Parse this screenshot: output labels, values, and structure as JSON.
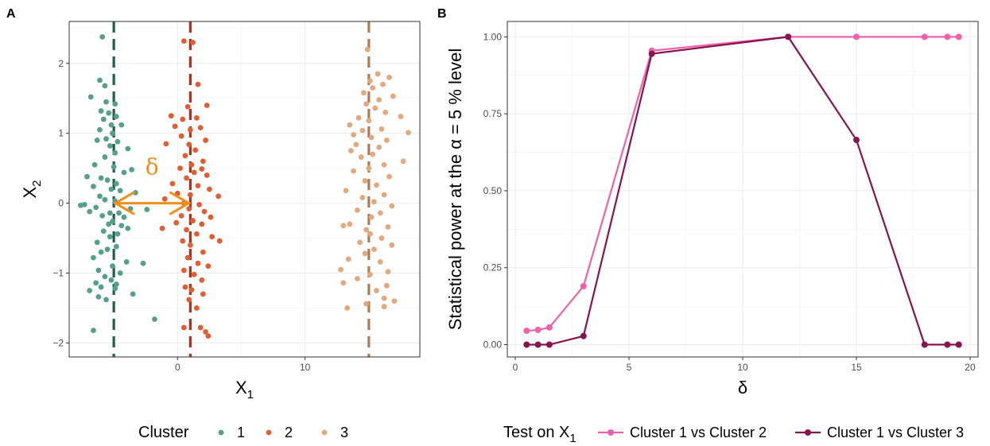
{
  "panels": {
    "a_label": "A",
    "b_label": "B"
  },
  "chart_data": [
    {
      "type": "scatter",
      "panel": "A",
      "xlabel_main": "X",
      "xlabel_sub": "1",
      "ylabel_main": "X",
      "ylabel_sub": "2",
      "xlim": [
        -8.5,
        19
      ],
      "ylim": [
        -2.2,
        2.6
      ],
      "xticks": [
        0,
        10
      ],
      "yticks": [
        -2,
        -1,
        0,
        1,
        2
      ],
      "cluster_centers": [
        -5,
        1,
        15
      ],
      "delta_annotation": {
        "text": "δ",
        "from": -5,
        "to": 1,
        "y": 0,
        "color": "#f28e1c"
      },
      "legend_title": "Cluster",
      "series": [
        {
          "name": "1",
          "color": "#55a08a",
          "line_color": "#1f5e4e",
          "points": [
            [
              -5.9,
              2.38
            ],
            [
              -6.1,
              1.76
            ],
            [
              -5.7,
              1.68
            ],
            [
              -6.8,
              1.52
            ],
            [
              -5.6,
              1.45
            ],
            [
              -4.9,
              1.42
            ],
            [
              -6.0,
              1.32
            ],
            [
              -5.4,
              1.29
            ],
            [
              -4.8,
              1.24
            ],
            [
              -5.8,
              1.2
            ],
            [
              -5.2,
              1.12
            ],
            [
              -4.4,
              1.12
            ],
            [
              -6.1,
              1.05
            ],
            [
              -5.1,
              1.0
            ],
            [
              -5.6,
              0.92
            ],
            [
              -6.3,
              0.9
            ],
            [
              -4.7,
              0.88
            ],
            [
              -5.3,
              0.82
            ],
            [
              -3.9,
              0.78
            ],
            [
              -4.9,
              0.72
            ],
            [
              -5.7,
              0.66
            ],
            [
              -6.5,
              0.55
            ],
            [
              -5.0,
              0.52
            ],
            [
              -3.6,
              0.48
            ],
            [
              -4.2,
              0.44
            ],
            [
              -7.1,
              0.38
            ],
            [
              -6.0,
              0.36
            ],
            [
              -5.5,
              0.33
            ],
            [
              -4.8,
              0.28
            ],
            [
              -6.6,
              0.24
            ],
            [
              -5.2,
              0.2
            ],
            [
              -4.5,
              0.18
            ],
            [
              -3.3,
              0.15
            ],
            [
              -6.1,
              0.1
            ],
            [
              -5.7,
              0.05
            ],
            [
              -4.9,
              0.03
            ],
            [
              -7.3,
              -0.02
            ],
            [
              -7.6,
              -0.03
            ],
            [
              -6.4,
              -0.06
            ],
            [
              -3.7,
              -0.08
            ],
            [
              -2.4,
              -0.09
            ],
            [
              -5.3,
              -0.14
            ],
            [
              -4.6,
              -0.14
            ],
            [
              -6.9,
              -0.12
            ],
            [
              -5.9,
              -0.18
            ],
            [
              -4.2,
              -0.2
            ],
            [
              -5.1,
              -0.26
            ],
            [
              -5.4,
              -0.3
            ],
            [
              -4.4,
              -0.32
            ],
            [
              -3.9,
              -0.36
            ],
            [
              -5.8,
              -0.4
            ],
            [
              -4.7,
              -0.44
            ],
            [
              -5.3,
              -0.48
            ],
            [
              -6.3,
              -0.56
            ],
            [
              -4.8,
              -0.62
            ],
            [
              -5.5,
              -0.66
            ],
            [
              -6.0,
              -0.7
            ],
            [
              -6.6,
              -0.78
            ],
            [
              -4.0,
              -0.84
            ],
            [
              -2.7,
              -0.86
            ],
            [
              -5.1,
              -0.9
            ],
            [
              -6.2,
              -0.96
            ],
            [
              -4.5,
              -1.0
            ],
            [
              -5.7,
              -1.05
            ],
            [
              -5.2,
              -1.1
            ],
            [
              -6.4,
              -1.14
            ],
            [
              -4.8,
              -1.16
            ],
            [
              -6.0,
              -1.2
            ],
            [
              -6.9,
              -1.25
            ],
            [
              -4.9,
              -1.22
            ],
            [
              -3.5,
              -1.3
            ],
            [
              -6.2,
              -1.34
            ],
            [
              -5.6,
              -1.38
            ],
            [
              -1.8,
              -1.66
            ],
            [
              -6.6,
              -1.82
            ]
          ]
        },
        {
          "name": "2",
          "color": "#e05e34",
          "line_color": "#a8321a",
          "points": [
            [
              0.5,
              2.32
            ],
            [
              1.2,
              2.3
            ],
            [
              1.6,
              1.7
            ],
            [
              2.3,
              1.4
            ],
            [
              0.8,
              1.38
            ],
            [
              -0.5,
              1.25
            ],
            [
              1.5,
              1.22
            ],
            [
              0.4,
              1.2
            ],
            [
              -0.2,
              1.1
            ],
            [
              1.8,
              1.08
            ],
            [
              1.0,
              1.05
            ],
            [
              0.3,
              0.96
            ],
            [
              2.2,
              0.9
            ],
            [
              0.9,
              0.84
            ],
            [
              -0.9,
              0.85
            ],
            [
              1.4,
              0.76
            ],
            [
              0.6,
              0.68
            ],
            [
              2.0,
              0.6
            ],
            [
              1.1,
              0.55
            ],
            [
              0.2,
              0.5
            ],
            [
              1.9,
              0.49
            ],
            [
              1.3,
              0.44
            ],
            [
              2.3,
              0.4
            ],
            [
              0.7,
              0.36
            ],
            [
              -0.4,
              0.28
            ],
            [
              1.6,
              0.25
            ],
            [
              2.5,
              0.2
            ],
            [
              0.0,
              0.14
            ],
            [
              1.0,
              0.12
            ],
            [
              3.2,
              0.1
            ],
            [
              -1.0,
              0.06
            ],
            [
              0.5,
              0.0
            ],
            [
              1.7,
              -0.02
            ],
            [
              0.9,
              -0.08
            ],
            [
              2.1,
              -0.12
            ],
            [
              0.3,
              -0.18
            ],
            [
              2.6,
              -0.2
            ],
            [
              1.2,
              -0.25
            ],
            [
              -0.1,
              -0.28
            ],
            [
              1.9,
              -0.3
            ],
            [
              -1.2,
              -0.36
            ],
            [
              0.7,
              -0.38
            ],
            [
              1.5,
              -0.44
            ],
            [
              2.7,
              -0.48
            ],
            [
              3.3,
              -0.54
            ],
            [
              0.4,
              -0.54
            ],
            [
              1.0,
              -0.6
            ],
            [
              2.0,
              -0.7
            ],
            [
              0.8,
              -0.78
            ],
            [
              1.6,
              -0.86
            ],
            [
              2.4,
              -0.9
            ],
            [
              0.5,
              -0.96
            ],
            [
              1.3,
              -1.02
            ],
            [
              1.9,
              -1.1
            ],
            [
              0.6,
              -1.2
            ],
            [
              1.1,
              -1.24
            ],
            [
              2.0,
              -1.3
            ],
            [
              0.9,
              -1.38
            ],
            [
              1.5,
              -1.5
            ],
            [
              0.5,
              -1.78
            ],
            [
              1.8,
              -1.78
            ],
            [
              2.2,
              -1.84
            ],
            [
              2.4,
              -1.9
            ]
          ]
        },
        {
          "name": "3",
          "color": "#e2a97e",
          "line_color": "#b07b56",
          "points": [
            [
              14.9,
              2.2
            ],
            [
              15.7,
              1.85
            ],
            [
              16.6,
              1.8
            ],
            [
              15.1,
              1.75
            ],
            [
              16.1,
              1.7
            ],
            [
              15.3,
              1.65
            ],
            [
              14.6,
              1.58
            ],
            [
              16.9,
              1.53
            ],
            [
              15.8,
              1.48
            ],
            [
              14.8,
              1.42
            ],
            [
              15.5,
              1.36
            ],
            [
              16.3,
              1.3
            ],
            [
              17.5,
              1.24
            ],
            [
              14.2,
              1.22
            ],
            [
              15.0,
              1.18
            ],
            [
              13.5,
              1.12
            ],
            [
              16.0,
              1.06
            ],
            [
              14.5,
              1.04
            ],
            [
              18.1,
              1.01
            ],
            [
              13.8,
              0.98
            ],
            [
              15.2,
              0.94
            ],
            [
              16.4,
              0.9
            ],
            [
              14.0,
              0.84
            ],
            [
              15.8,
              0.8
            ],
            [
              13.6,
              0.75
            ],
            [
              15.3,
              0.7
            ],
            [
              14.4,
              0.66
            ],
            [
              17.7,
              0.6
            ],
            [
              16.2,
              0.55
            ],
            [
              15.0,
              0.5
            ],
            [
              13.8,
              0.46
            ],
            [
              16.6,
              0.38
            ],
            [
              14.7,
              0.32
            ],
            [
              15.6,
              0.26
            ],
            [
              13.2,
              0.18
            ],
            [
              16.2,
              0.12
            ],
            [
              14.5,
              0.08
            ],
            [
              15.4,
              0.02
            ],
            [
              16.8,
              -0.04
            ],
            [
              14.1,
              -0.1
            ],
            [
              15.9,
              -0.14
            ],
            [
              15.2,
              -0.2
            ],
            [
              13.5,
              -0.3
            ],
            [
              13.0,
              -0.32
            ],
            [
              16.5,
              -0.34
            ],
            [
              14.8,
              -0.38
            ],
            [
              15.1,
              -0.44
            ],
            [
              16.0,
              -0.5
            ],
            [
              14.3,
              -0.56
            ],
            [
              16.8,
              -0.6
            ],
            [
              15.4,
              -0.66
            ],
            [
              14.7,
              -0.72
            ],
            [
              13.4,
              -0.8
            ],
            [
              15.9,
              -0.84
            ],
            [
              12.8,
              -0.95
            ],
            [
              16.5,
              -0.98
            ],
            [
              15.1,
              -1.02
            ],
            [
              14.1,
              -1.08
            ],
            [
              13.0,
              -1.14
            ],
            [
              16.4,
              -1.18
            ],
            [
              15.6,
              -1.25
            ],
            [
              16.2,
              -1.36
            ],
            [
              17.0,
              -1.4
            ],
            [
              14.8,
              -1.44
            ],
            [
              13.3,
              -1.5
            ],
            [
              16.2,
              -1.48
            ]
          ]
        }
      ]
    },
    {
      "type": "line",
      "panel": "B",
      "xlabel": "δ",
      "ylabel": "Statistical power at the α = 5 %  level",
      "xlim": [
        -0.35,
        20.35
      ],
      "ylim": [
        -0.04,
        1.05
      ],
      "xticks": [
        0,
        5,
        10,
        15,
        20
      ],
      "yticks": [
        0.0,
        0.25,
        0.5,
        0.75,
        1.0
      ],
      "ytick_labels": [
        "0.00",
        "0.25",
        "0.50",
        "0.75",
        "1.00"
      ],
      "legend_title_main": "Test on X",
      "legend_title_sub": "1",
      "series": [
        {
          "name": "Cluster 1 vs Cluster 2",
          "color": "#ef62a8",
          "x": [
            0.5,
            1,
            1.5,
            3,
            6,
            12,
            15,
            18,
            19,
            19.5
          ],
          "values": [
            0.045,
            0.048,
            0.056,
            0.19,
            0.955,
            1.0,
            1.0,
            1.0,
            1.0,
            1.0
          ]
        },
        {
          "name": "Cluster 1 vs Cluster 3",
          "color": "#851451",
          "x": [
            0.5,
            1,
            1.5,
            3,
            6,
            12,
            15,
            18,
            19,
            19.5
          ],
          "values": [
            0.0,
            0.0,
            0.0,
            0.028,
            0.945,
            1.0,
            0.665,
            0.0,
            0.0,
            0.0
          ]
        }
      ]
    }
  ]
}
